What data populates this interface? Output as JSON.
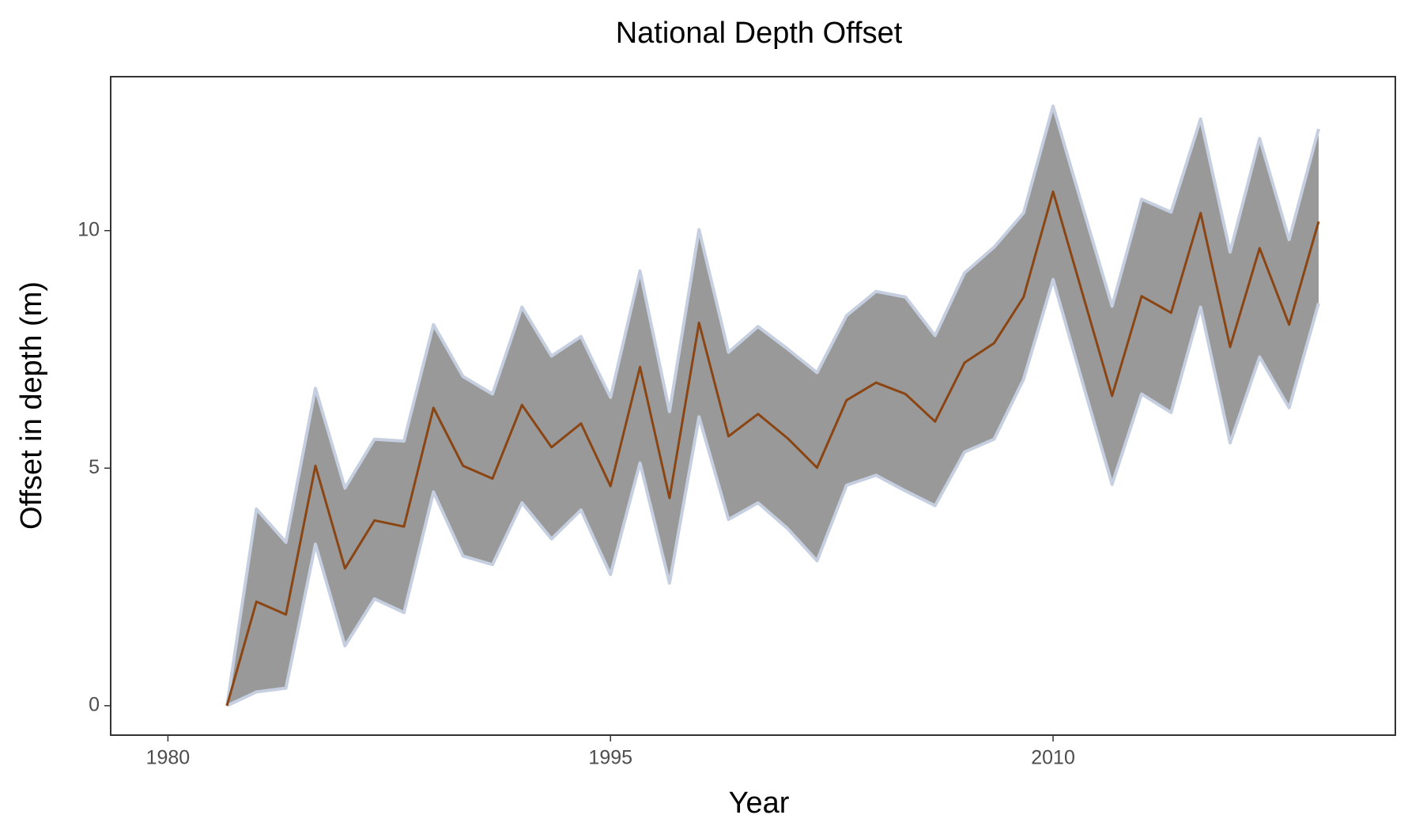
{
  "chart_data": {
    "type": "line",
    "title": "National Depth Offset",
    "x_label": "Year",
    "y_label": "Offset in depth (m)",
    "x": [
      1982,
      1983,
      1984,
      1985,
      1986,
      1987,
      1988,
      1989,
      1990,
      1991,
      1992,
      1993,
      1994,
      1995,
      1996,
      1997,
      1998,
      1999,
      2000,
      2001,
      2002,
      2003,
      2004,
      2005,
      2006,
      2007,
      2008,
      2009,
      2010,
      2011,
      2012,
      2013,
      2014,
      2015,
      2016,
      2017,
      2018,
      2019
    ],
    "series": [
      {
        "color": "#8b4513",
        "values": [
          0,
          2.19,
          1.92,
          5.05,
          2.89,
          3.9,
          3.77,
          6.27,
          5.05,
          4.78,
          6.33,
          5.44,
          5.94,
          4.62,
          7.13,
          4.37,
          8.06,
          5.67,
          6.14,
          5.63,
          5.01,
          6.43,
          6.8,
          6.56,
          5.98,
          7.22,
          7.63,
          8.6,
          10.82,
          8.67,
          6.52,
          8.62,
          8.27,
          10.37,
          7.55,
          9.63,
          8.02,
          10.19
        ]
      }
    ],
    "band": {
      "color": "#999999",
      "edge_color": "#c5cfe0",
      "upper": [
        0,
        4.14,
        3.44,
        6.68,
        4.58,
        5.61,
        5.57,
        8.02,
        6.93,
        6.56,
        8.39,
        7.36,
        7.77,
        6.49,
        9.15,
        6.19,
        10.02,
        7.44,
        7.98,
        7.51,
        7.01,
        8.21,
        8.72,
        8.6,
        7.79,
        9.11,
        9.65,
        10.37,
        12.62,
        10.5,
        8.41,
        10.66,
        10.39,
        12.35,
        9.55,
        11.94,
        9.81,
        12.14
      ],
      "lower": [
        0,
        0.29,
        0.37,
        3.4,
        1.26,
        2.25,
        1.96,
        4.5,
        3.15,
        2.97,
        4.27,
        3.51,
        4.12,
        2.76,
        5.11,
        2.58,
        6.08,
        3.92,
        4.27,
        3.73,
        3.05,
        4.64,
        4.85,
        4.52,
        4.21,
        5.34,
        5.61,
        6.87,
        8.97,
        6.8,
        4.66,
        6.56,
        6.17,
        8.39,
        5.53,
        7.34,
        6.27,
        8.47
      ]
    },
    "xlim": [
      1978.06,
      2021.6
    ],
    "ylim": [
      -0.62,
      13.24
    ],
    "xticks": [
      1980,
      1995,
      2010
    ],
    "yticks": [
      0,
      5,
      10
    ],
    "grid": false
  }
}
